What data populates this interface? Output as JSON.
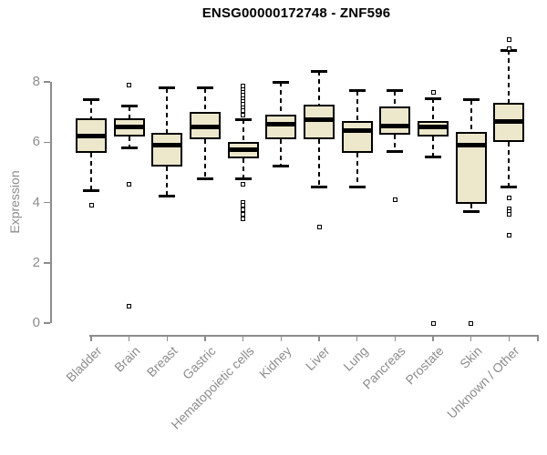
{
  "title": "ENSG00000172748 - ZNF596",
  "chart_data": {
    "type": "boxplot",
    "title": "ENSG00000172748 - ZNF596",
    "ylabel": "Expression",
    "xlabel": "",
    "yticks": [
      0,
      2,
      4,
      6,
      8
    ],
    "ylim": [
      0,
      9.8
    ],
    "grid": false,
    "legend": "none",
    "colors": {
      "box_fill": "#EDE8CC",
      "box_border": "#000000",
      "median": "#000000",
      "whisker": "#000000",
      "axis": "#8C8C8C",
      "title_text": "#000000"
    },
    "categories": [
      "Bladder",
      "Brain",
      "Breast",
      "Gastric",
      "Hematopoietic cells",
      "Kidney",
      "Liver",
      "Lung",
      "Pancreas",
      "Prostate",
      "Skin",
      "Unknown / Other"
    ],
    "series": [
      {
        "name": "Bladder",
        "low": 4.4,
        "q1": 5.65,
        "median": 6.2,
        "q3": 6.8,
        "high": 7.4,
        "outliers": [
          3.9
        ]
      },
      {
        "name": "Brain",
        "low": 5.8,
        "q1": 6.2,
        "median": 6.5,
        "q3": 6.8,
        "high": 7.2,
        "outliers": [
          7.9,
          4.6,
          0.55
        ]
      },
      {
        "name": "Breast",
        "low": 4.2,
        "q1": 5.2,
        "median": 5.9,
        "q3": 6.3,
        "high": 7.8,
        "outliers": []
      },
      {
        "name": "Gastric",
        "low": 4.8,
        "q1": 6.1,
        "median": 6.5,
        "q3": 7.0,
        "high": 7.8,
        "outliers": []
      },
      {
        "name": "Hematopoietic cells",
        "low": 4.8,
        "q1": 5.45,
        "median": 5.75,
        "q3": 6.0,
        "high": 6.75,
        "outliers": [
          7.85,
          7.75,
          7.65,
          7.55,
          7.45,
          7.35,
          7.25,
          7.15,
          7.05,
          6.9,
          4.6,
          4.0,
          3.9,
          3.75,
          3.6,
          3.45
        ]
      },
      {
        "name": "Kidney",
        "low": 5.2,
        "q1": 6.1,
        "median": 6.6,
        "q3": 6.9,
        "high": 8.0,
        "outliers": []
      },
      {
        "name": "Liver",
        "low": 4.5,
        "q1": 6.1,
        "median": 6.75,
        "q3": 7.25,
        "high": 8.35,
        "outliers": [
          3.2
        ]
      },
      {
        "name": "Lung",
        "low": 4.5,
        "q1": 5.65,
        "median": 6.4,
        "q3": 6.7,
        "high": 7.7,
        "outliers": []
      },
      {
        "name": "Pancreas",
        "low": 5.7,
        "q1": 6.25,
        "median": 6.55,
        "q3": 7.2,
        "high": 7.7,
        "outliers": [
          4.1
        ]
      },
      {
        "name": "Prostate",
        "low": 5.5,
        "q1": 6.2,
        "median": 6.5,
        "q3": 6.7,
        "high": 7.45,
        "outliers": [
          7.65,
          0.0
        ]
      },
      {
        "name": "Skin",
        "low": 3.7,
        "q1": 3.95,
        "median": 5.9,
        "q3": 6.35,
        "high": 7.4,
        "outliers": [
          0.0
        ]
      },
      {
        "name": "Unknown / Other",
        "low": 4.5,
        "q1": 6.0,
        "median": 6.7,
        "q3": 7.3,
        "high": 9.05,
        "outliers": [
          9.4,
          9.1,
          4.15,
          3.8,
          3.7,
          3.6,
          2.9
        ]
      }
    ]
  }
}
